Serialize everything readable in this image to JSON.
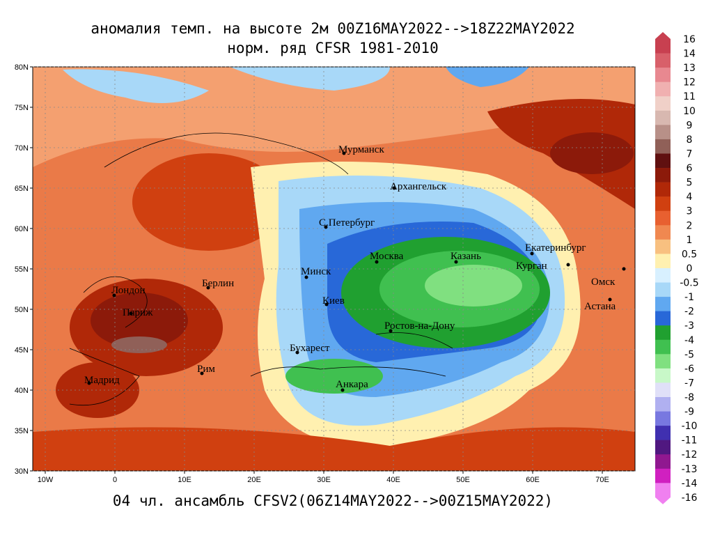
{
  "map": {
    "title": "аномалия темп. на высоте 2м 00Z16MAY2022-->18Z22MAY2022",
    "subtitle": "норм. ряд CFSR 1981-2010",
    "footer": "04 чл. ансамбль CFSV2(06Z14MAY2022-->00Z15MAY2022)",
    "lon_ticks": [
      {
        "value": -10,
        "label": "10W"
      },
      0,
      {
        "value": 10,
        "label": "10E"
      },
      {
        "value": 20,
        "label": "20E"
      },
      {
        "value": 30,
        "label": "30E"
      },
      {
        "value": 40,
        "label": "40E"
      },
      {
        "value": 50,
        "label": "50E"
      },
      {
        "value": 60,
        "label": "60E"
      },
      {
        "value": 70,
        "label": "70E"
      }
    ],
    "lat_ticks": [
      {
        "value": 30,
        "label": "30N"
      },
      {
        "value": 35,
        "label": "35N"
      },
      {
        "value": 40,
        "label": "40N"
      },
      {
        "value": 45,
        "label": "45N"
      },
      {
        "value": 50,
        "label": "50N"
      },
      {
        "value": 55,
        "label": "55N"
      },
      {
        "value": 60,
        "label": "60N"
      },
      {
        "value": 65,
        "label": "65N"
      },
      {
        "value": 70,
        "label": "70N"
      },
      {
        "value": 75,
        "label": "75N"
      },
      {
        "value": 80,
        "label": "80N"
      }
    ],
    "cities": [
      "Мурманск",
      "Архангельск",
      "С.Петербург",
      "Москва",
      "Казань",
      "Екатеринбург",
      "Курган",
      "Омск",
      "Астана",
      "Минск",
      "Киев",
      "Берлин",
      "Лондон",
      "Париж",
      "Бухарест",
      "Рим",
      "Мадрид",
      "Ростов-на-Дону",
      "Анкара"
    ],
    "colorbar": {
      "levels": [
        16,
        14,
        13,
        12,
        11,
        10,
        9,
        8,
        7,
        6,
        5,
        4,
        3,
        2,
        1,
        0.5,
        0,
        -0.5,
        -1,
        -2,
        -3,
        -4,
        -5,
        -6,
        -7,
        -8,
        -9,
        -10,
        -11,
        -12,
        -13,
        -14,
        -16
      ],
      "colors": [
        "#c84050",
        "#d8606a",
        "#e88890",
        "#f0b0b0",
        "#f0d0c8",
        "#d8b8b0",
        "#b89088",
        "#906058",
        "#601010",
        "#8c1a0a",
        "#b02808",
        "#d04010",
        "#e86030",
        "#f08850",
        "#f8c080",
        "#fff0b0",
        "#d8f0ff",
        "#a8d8f8",
        "#60a8f0",
        "#2868d8",
        "#20a030",
        "#40c050",
        "#80e080",
        "#c8f8c8",
        "#e0e0f8",
        "#b0b0f0",
        "#7878e0",
        "#4030b0",
        "#501880",
        "#901890",
        "#d020c0",
        "#f080f0"
      ]
    }
  }
}
